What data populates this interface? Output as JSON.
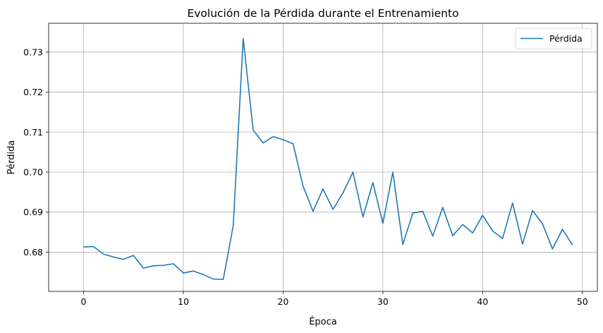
{
  "chart_data": {
    "type": "line",
    "title": "Evolución de la Pérdida durante el Entrenamiento",
    "xlabel": "Época",
    "ylabel": "Pérdida",
    "xlim": [
      -3.5,
      51.5
    ],
    "ylim": [
      0.6702,
      0.7372
    ],
    "xticks": [
      0,
      10,
      20,
      30,
      40,
      50
    ],
    "yticks": [
      0.68,
      0.69,
      0.7,
      0.71,
      0.72,
      0.73
    ],
    "ytick_labels": [
      "0.68",
      "0.69",
      "0.70",
      "0.71",
      "0.72",
      "0.73"
    ],
    "grid": true,
    "legend_position": "top-right",
    "colors": {
      "line": "#1f77b4",
      "grid": "#b0b0b0",
      "spine": "#000000"
    },
    "series": [
      {
        "name": "Pérdida",
        "x": [
          0,
          1,
          2,
          3,
          4,
          5,
          6,
          7,
          8,
          9,
          10,
          11,
          12,
          13,
          14,
          15,
          16,
          17,
          18,
          19,
          20,
          21,
          22,
          23,
          24,
          25,
          26,
          27,
          28,
          29,
          30,
          31,
          32,
          33,
          34,
          35,
          36,
          37,
          38,
          39,
          40,
          41,
          42,
          43,
          44,
          45,
          46,
          47,
          48,
          49
        ],
        "values": [
          0.6813,
          0.6814,
          0.6795,
          0.6788,
          0.6782,
          0.6792,
          0.676,
          0.6766,
          0.6767,
          0.6771,
          0.6748,
          0.6753,
          0.6744,
          0.6733,
          0.6732,
          0.6866,
          0.7334,
          0.7105,
          0.7073,
          0.7089,
          0.7081,
          0.7071,
          0.6965,
          0.6902,
          0.6958,
          0.6907,
          0.6948,
          0.7,
          0.6888,
          0.6974,
          0.6872,
          0.7,
          0.6819,
          0.6898,
          0.6902,
          0.684,
          0.6912,
          0.6841,
          0.6869,
          0.6848,
          0.6892,
          0.6853,
          0.6834,
          0.6923,
          0.682,
          0.6904,
          0.6871,
          0.6808,
          0.6857,
          0.6818
        ]
      }
    ]
  }
}
